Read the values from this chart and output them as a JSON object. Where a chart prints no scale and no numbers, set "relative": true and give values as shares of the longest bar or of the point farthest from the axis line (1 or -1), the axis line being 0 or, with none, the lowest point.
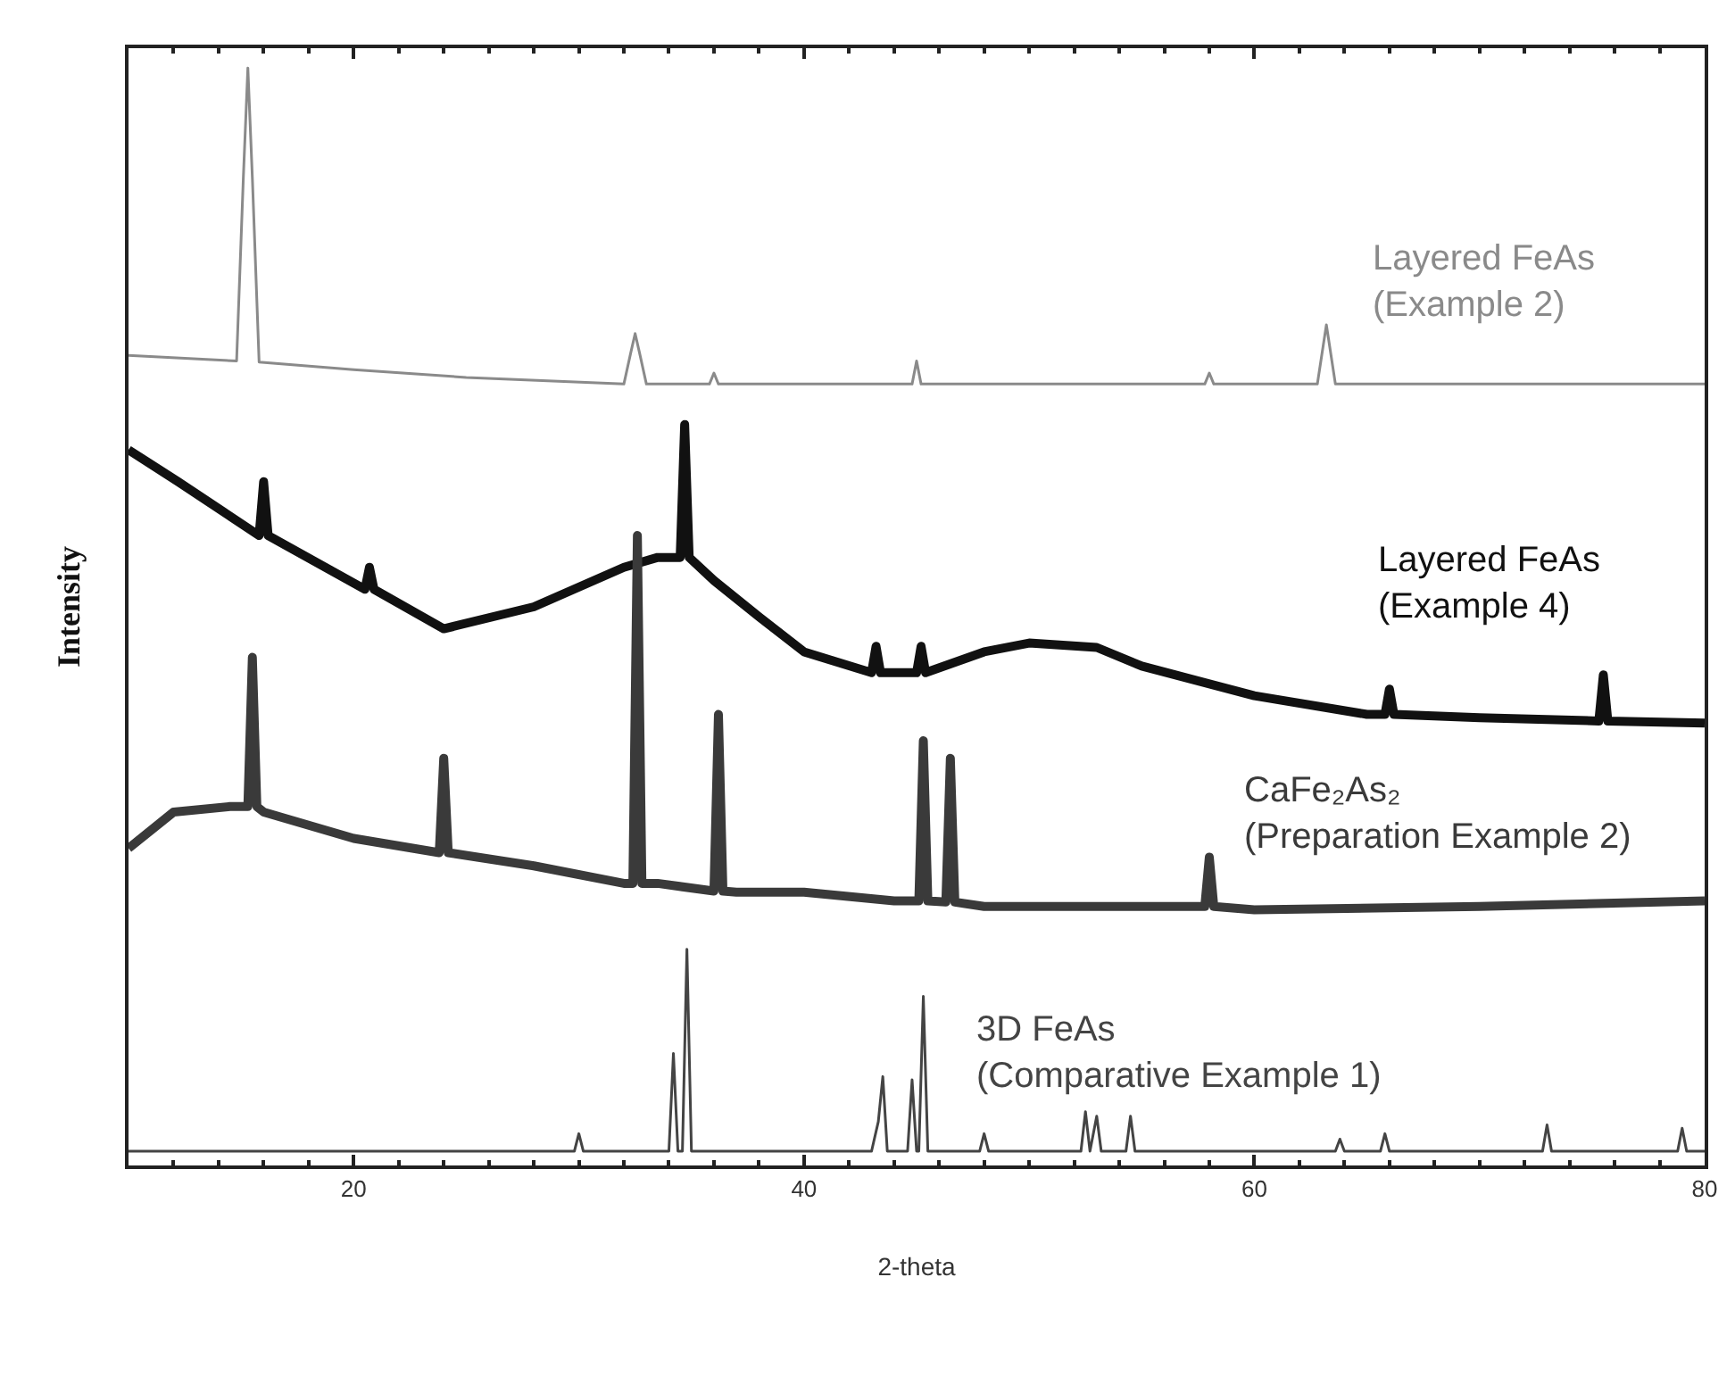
{
  "chart_data": {
    "type": "line",
    "relative": true,
    "xlabel": "2-theta",
    "ylabel": "Intensity",
    "xlim": [
      10,
      80
    ],
    "xticks": [
      20,
      40,
      60,
      80
    ],
    "grid": false,
    "legend": false,
    "marker": "none",
    "series": [
      {
        "name": "Layered FeAs\n(Example 2)",
        "color": "#8a8a8a",
        "x": [
          10,
          14.8,
          15.1,
          15.3,
          15.5,
          15.8,
          20,
          25,
          32,
          32.3,
          32.5,
          32.7,
          33,
          35.8,
          36,
          36.2,
          40,
          44.8,
          45,
          45.2,
          50,
          57.8,
          58,
          58.2,
          62.8,
          63.2,
          63.6,
          70,
          80
        ],
        "values": [
          0.738,
          0.733,
          0.9,
          1.0,
          0.9,
          0.732,
          0.725,
          0.718,
          0.712,
          0.74,
          0.758,
          0.74,
          0.712,
          0.712,
          0.722,
          0.712,
          0.712,
          0.712,
          0.733,
          0.712,
          0.712,
          0.712,
          0.722,
          0.712,
          0.712,
          0.766,
          0.712,
          0.712,
          0.712
        ]
      },
      {
        "name": "Layered FeAs\n(Example 4)",
        "color": "#111111",
        "x": [
          10,
          12.2,
          15.8,
          16,
          16.2,
          20.5,
          20.7,
          20.9,
          24,
          28,
          32,
          33.5,
          34.5,
          34.7,
          34.9,
          36,
          38,
          40,
          43,
          43.2,
          43.4,
          45,
          45.2,
          45.4,
          48,
          50,
          53,
          55,
          60,
          65,
          65.8,
          66,
          66.2,
          70,
          75.3,
          75.5,
          75.7,
          80
        ],
        "values": [
          0.652,
          0.623,
          0.574,
          0.623,
          0.574,
          0.525,
          0.545,
          0.525,
          0.489,
          0.509,
          0.545,
          0.554,
          0.554,
          0.675,
          0.554,
          0.533,
          0.5,
          0.468,
          0.449,
          0.473,
          0.449,
          0.449,
          0.473,
          0.449,
          0.468,
          0.476,
          0.472,
          0.455,
          0.428,
          0.411,
          0.411,
          0.434,
          0.411,
          0.408,
          0.405,
          0.447,
          0.405,
          0.403
        ]
      },
      {
        "name": "CaFe₂As₂\n(Preparation Example 2)",
        "color": "#3a3a3a",
        "x": [
          10,
          12,
          14.5,
          15.3,
          15.5,
          15.7,
          16,
          20,
          23.8,
          24,
          24.2,
          28,
          32,
          32.4,
          32.6,
          32.8,
          33.5,
          36,
          36.2,
          36.4,
          37,
          40,
          44,
          45.1,
          45.3,
          45.5,
          46.3,
          46.5,
          46.7,
          48,
          57.8,
          58,
          58.2,
          60,
          70,
          80
        ],
        "values": [
          0.289,
          0.322,
          0.327,
          0.327,
          0.463,
          0.327,
          0.322,
          0.298,
          0.285,
          0.371,
          0.285,
          0.273,
          0.257,
          0.257,
          0.574,
          0.257,
          0.257,
          0.25,
          0.411,
          0.25,
          0.249,
          0.249,
          0.241,
          0.241,
          0.387,
          0.241,
          0.24,
          0.371,
          0.24,
          0.236,
          0.236,
          0.281,
          0.236,
          0.233,
          0.236,
          0.241
        ]
      },
      {
        "name": "3D FeAs\n(Comparative Example 1)",
        "color": "#444444",
        "x": [
          10,
          29.8,
          30,
          30.2,
          34,
          34.2,
          34.4,
          34.6,
          34.8,
          35,
          43,
          43.3,
          43.5,
          43.7,
          44.6,
          44.8,
          45,
          45.1,
          45.3,
          45.5,
          47.8,
          48,
          48.2,
          52.3,
          52.5,
          52.7,
          53,
          53.2,
          54.3,
          54.5,
          54.7,
          63.6,
          63.8,
          64,
          65.6,
          65.8,
          66,
          72.8,
          73,
          73.2,
          78.8,
          79,
          79.2,
          80
        ],
        "values": [
          0.013,
          0.013,
          0.029,
          0.013,
          0.013,
          0.102,
          0.013,
          0.013,
          0.197,
          0.013,
          0.013,
          0.04,
          0.081,
          0.013,
          0.013,
          0.078,
          0.013,
          0.013,
          0.154,
          0.013,
          0.013,
          0.029,
          0.013,
          0.013,
          0.049,
          0.013,
          0.045,
          0.013,
          0.013,
          0.045,
          0.013,
          0.013,
          0.024,
          0.013,
          0.013,
          0.029,
          0.013,
          0.013,
          0.037,
          0.013,
          0.013,
          0.034,
          0.013,
          0.013
        ]
      }
    ]
  }
}
